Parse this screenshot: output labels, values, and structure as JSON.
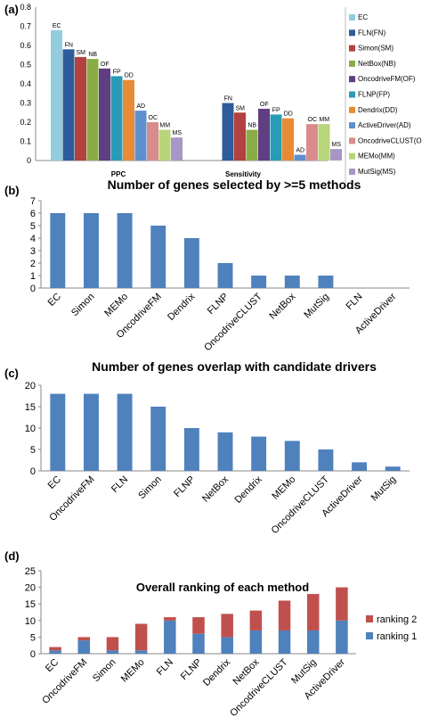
{
  "chart_data": [
    {
      "panel": "(a)",
      "type": "bar",
      "title": "",
      "categories": [
        "PPC",
        "Sensitivity"
      ],
      "ylim": [
        0,
        0.8
      ],
      "yticks": [
        0,
        0.1,
        0.2,
        0.3,
        0.4,
        0.5,
        0.6,
        0.7,
        0.8
      ],
      "grid": false,
      "legend": "right",
      "series": [
        {
          "name": "EC",
          "abbr": "EC",
          "color": "#93cddd",
          "values": [
            0.68,
            null
          ]
        },
        {
          "name": "FLN(FN)",
          "abbr": "FN",
          "color": "#2e5c9a",
          "values": [
            0.58,
            0.3
          ]
        },
        {
          "name": "Simon(SM)",
          "abbr": "SM",
          "color": "#b2413f",
          "values": [
            0.54,
            0.25
          ]
        },
        {
          "name": "NetBox(NB)",
          "abbr": "NB",
          "color": "#8aac46",
          "values": [
            0.53,
            0.16
          ]
        },
        {
          "name": "OncodriveFM(OF)",
          "abbr": "OF",
          "color": "#5f3f81",
          "values": [
            0.48,
            0.27
          ]
        },
        {
          "name": "FLNP(FP)",
          "abbr": "FP",
          "color": "#2a9bb4",
          "values": [
            0.44,
            0.24
          ]
        },
        {
          "name": "Dendrix(DD)",
          "abbr": "DD",
          "color": "#e98a34",
          "values": [
            0.42,
            0.22
          ]
        },
        {
          "name": "ActiveDriver(AD)",
          "abbr": "AD",
          "color": "#5e8fd0",
          "values": [
            0.26,
            0.03
          ]
        },
        {
          "name": "OncodriveCLUST(OC)",
          "abbr": "OC",
          "color": "#d98c8b",
          "values": [
            0.2,
            0.19
          ]
        },
        {
          "name": "MEMo(MM)",
          "abbr": "MM",
          "color": "#b8d57a",
          "values": [
            0.16,
            0.19
          ]
        },
        {
          "name": "MutSig(MS)",
          "abbr": "MS",
          "color": "#a897c5",
          "values": [
            0.12,
            0.06
          ]
        }
      ]
    },
    {
      "panel": "(b)",
      "type": "bar",
      "title": "Number of genes selected by >=5 methods",
      "categories": [
        "EC",
        "Simon",
        "MEMo",
        "OncodriveFM",
        "Dendrix",
        "FLNP",
        "OncodriveCLUST",
        "NetBox",
        "MutSig",
        "FLN",
        "ActiveDriver"
      ],
      "values": [
        6,
        6,
        6,
        5,
        4,
        2,
        1,
        1,
        1,
        0,
        0
      ],
      "ylim": [
        0,
        7
      ],
      "yticks": [
        0,
        1,
        2,
        3,
        4,
        5,
        6,
        7
      ],
      "grid": false,
      "color": "#4f81bd"
    },
    {
      "panel": "(c)",
      "type": "bar",
      "title": "Number of genes overlap with candidate drivers",
      "categories": [
        "EC",
        "OncodriveFM",
        "FLN",
        "Simon",
        "FLNP",
        "NetBox",
        "Dendrix",
        "MEMo",
        "OncodriveCLUST",
        "ActiveDriver",
        "MutSig"
      ],
      "values": [
        18,
        18,
        18,
        15,
        10,
        9,
        8,
        7,
        5,
        2,
        1
      ],
      "ylim": [
        0,
        20
      ],
      "yticks": [
        0,
        5,
        10,
        15,
        20
      ],
      "grid": false,
      "color": "#4f81bd"
    },
    {
      "panel": "(d)",
      "type": "bar",
      "stacked": true,
      "title": "Overall ranking of each method",
      "categories": [
        "EC",
        "OncodriveFM",
        "Simon",
        "MEMo",
        "FLN",
        "FLNP",
        "Dendrix",
        "NetBox",
        "OncodriveCLUST",
        "MutSig",
        "ActiveDriver"
      ],
      "ylim": [
        0,
        25
      ],
      "yticks": [
        0,
        5,
        10,
        15,
        20,
        25
      ],
      "grid": false,
      "legend": "right",
      "series": [
        {
          "name": "ranking 1",
          "color": "#4f81bd",
          "values": [
            1,
            4,
            1,
            1,
            10,
            6,
            5,
            7,
            7,
            7,
            10
          ]
        },
        {
          "name": "ranking 2",
          "color": "#c0504d",
          "values": [
            1,
            1,
            4,
            8,
            1,
            5,
            7,
            6,
            9,
            11,
            10
          ]
        }
      ]
    }
  ]
}
